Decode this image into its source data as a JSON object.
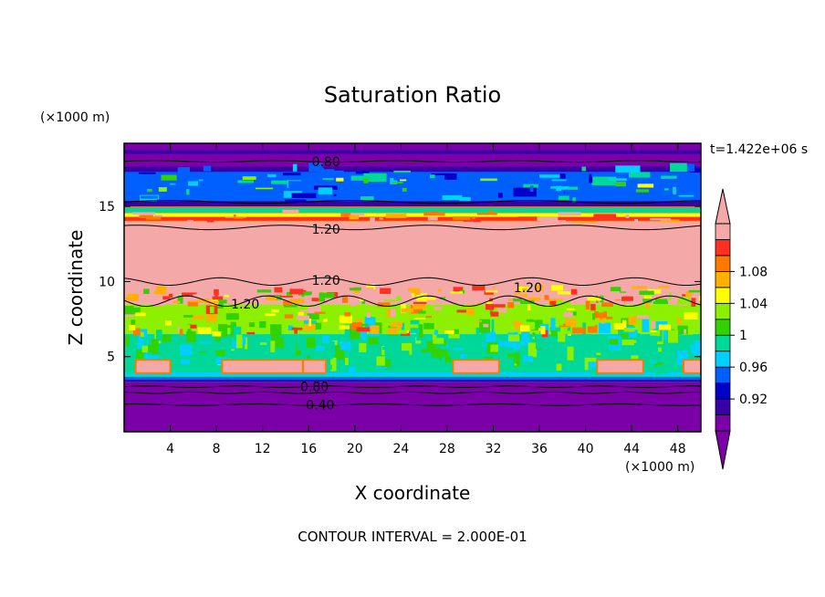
{
  "chart_data": {
    "type": "heatmap",
    "title": "Saturation Ratio",
    "xlabel": "X coordinate",
    "ylabel": "Z coordinate",
    "x_unit": "(×1000 m)",
    "y_unit": "(×1000 m)",
    "time_label": "t=1.422e+06 s",
    "footer": "CONTOUR INTERVAL = 2.000E-01",
    "xlim": [
      0,
      50
    ],
    "ylim": [
      0,
      19.2
    ],
    "x_ticks": [
      4,
      8,
      12,
      16,
      20,
      24,
      28,
      32,
      36,
      40,
      44,
      48
    ],
    "y_ticks": [
      5,
      10,
      15
    ],
    "colorbar": {
      "labels": [
        "0.92",
        "0.96",
        "1",
        "1.04",
        "1.08"
      ],
      "levels": [
        0.92,
        0.96,
        1,
        1.04,
        1.08
      ],
      "colors": [
        "#7B00A8",
        "#3A00A8",
        "#0000C8",
        "#0060FF",
        "#00D0FF",
        "#00D89A",
        "#32D200",
        "#8CF000",
        "#FFFF00",
        "#FFB000",
        "#FF7800",
        "#FF3020",
        "#F4A8A8"
      ]
    },
    "bands": [
      {
        "z": [
          0,
          3.3
        ],
        "level": "below 0.92",
        "color": "#7B00A8"
      },
      {
        "z": [
          3.3,
          3.6
        ],
        "level": "0.92-0.96",
        "color": "#3A00A8"
      },
      {
        "z": [
          3.6,
          6.5
        ],
        "level": "1-1.04",
        "color": "#00D89A"
      },
      {
        "z": [
          6.5,
          8.5
        ],
        "level": "mixed 1-1.08",
        "color": "#8CF000"
      },
      {
        "z": [
          8.5,
          14
        ],
        "level": "above 1.08",
        "color": "#F4A8A8"
      },
      {
        "z": [
          14,
          15
        ],
        "level": "mixed",
        "color": "#FF7800"
      },
      {
        "z": [
          15,
          17.5
        ],
        "level": "0.92-1",
        "color": "#0060FF"
      },
      {
        "z": [
          17.5,
          19.2
        ],
        "level": "below 0.92",
        "color": "#7B00A8"
      }
    ],
    "contour_labels": [
      {
        "text": "0.80",
        "x": 17.5,
        "z": 18.0
      },
      {
        "text": "1.20",
        "x": 17.5,
        "z": 13.5
      },
      {
        "text": "1.20",
        "x": 17.5,
        "z": 10.1
      },
      {
        "text": "1.20",
        "x": 10.5,
        "z": 8.5
      },
      {
        "text": "1.20",
        "x": 35.0,
        "z": 9.6
      },
      {
        "text": "0.80",
        "x": 16.5,
        "z": 3.0
      },
      {
        "text": "0.40",
        "x": 17.0,
        "z": 1.8
      }
    ]
  }
}
